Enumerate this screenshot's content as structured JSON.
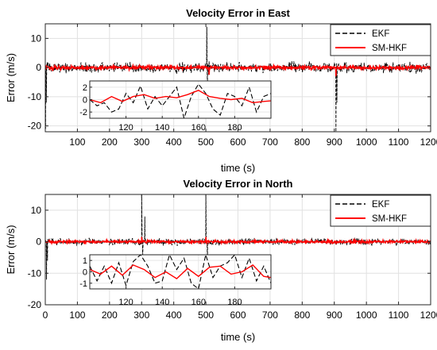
{
  "chart_data": [
    {
      "type": "line",
      "title": "Velocity Error in East",
      "xlabel": "time (s)",
      "ylabel": "Error (m/s)",
      "xlim": [
        0,
        1200
      ],
      "ylim": [
        -22,
        15
      ],
      "xticks": [
        "100",
        "200",
        "300",
        "400",
        "500",
        "600",
        "700",
        "800",
        "900",
        "1000",
        "1100",
        "1200"
      ],
      "yticks": [
        "10",
        "0",
        "-10",
        "-20"
      ],
      "grid": true,
      "legend_position": "top-right",
      "series": [
        {
          "name": "EKF",
          "color": "#000000",
          "line_style": "dashed",
          "noise_amplitude": 2.5,
          "spikes": [
            [
              1,
              -21
            ],
            [
              3,
              -12
            ],
            [
              503,
              14
            ],
            [
              505,
              -6
            ],
            [
              905,
              -22
            ],
            [
              908,
              -12
            ]
          ]
        },
        {
          "name": "SM-HKF",
          "color": "#ff0000",
          "line_style": "solid",
          "noise_amplitude": 0.9,
          "spikes": [
            [
              510,
              -2.5
            ],
            [
              905,
              -3
            ]
          ]
        }
      ],
      "inset": {
        "xlim": [
          100,
          200
        ],
        "ylim": [
          -3,
          3
        ],
        "xticks": [
          "120",
          "140",
          "160",
          "180"
        ],
        "yticks": [
          "2",
          "0",
          "-2"
        ],
        "series": [
          {
            "name": "EKF",
            "x": [
              100,
              104,
              108,
              112,
              116,
              120,
              124,
              128,
              132,
              136,
              140,
              144,
              148,
              152,
              156,
              160,
              164,
              168,
              172,
              176,
              180,
              184,
              188,
              192,
              196,
              200
            ],
            "y": [
              0,
              -1,
              -0.5,
              -2,
              -1.5,
              1,
              -0.5,
              2.2,
              -1.5,
              0.5,
              -1,
              0.5,
              2,
              -3,
              0.5,
              2.5,
              1,
              -1.5,
              -2.5,
              1,
              0.5,
              -1,
              2,
              -2,
              0.5,
              1
            ]
          },
          {
            "name": "SM-HKF",
            "x": [
              100,
              106,
              112,
              118,
              124,
              130,
              136,
              142,
              148,
              154,
              160,
              166,
              172,
              178,
              184,
              190,
              196,
              200
            ],
            "y": [
              0,
              -0.5,
              0.5,
              -0.3,
              0.5,
              0.8,
              0.2,
              0.5,
              0.3,
              0.8,
              1.5,
              0.5,
              0.2,
              0,
              0.2,
              -0.5,
              -0.3,
              -0.2
            ]
          }
        ]
      }
    },
    {
      "type": "line",
      "title": "Velocity Error in North",
      "xlabel": "time (s)",
      "ylabel": "Error (m/s)",
      "xlim": [
        0,
        1200
      ],
      "ylim": [
        -20,
        15
      ],
      "xticks": [
        "0",
        "100",
        "200",
        "300",
        "400",
        "500",
        "600",
        "700",
        "800",
        "900",
        "1000",
        "1100",
        "1200"
      ],
      "yticks": [
        "10",
        "0",
        "-10",
        "-20"
      ],
      "grid": true,
      "legend_position": "top-right",
      "series": [
        {
          "name": "EKF",
          "color": "#000000",
          "line_style": "dashed",
          "noise_amplitude": 1.5,
          "spikes": [
            [
              4,
              -12
            ],
            [
              7,
              -6
            ],
            [
              300,
              15
            ],
            [
              303,
              -5
            ],
            [
              310,
              8
            ],
            [
              500,
              15
            ],
            [
              505,
              -6
            ]
          ]
        },
        {
          "name": "SM-HKF",
          "color": "#ff0000",
          "line_style": "solid",
          "noise_amplitude": 0.6,
          "spikes": [
            [
              300,
              1.5
            ],
            [
              500,
              1.5
            ]
          ]
        }
      ],
      "inset": {
        "xlim": [
          100,
          200
        ],
        "ylim": [
          -1.5,
          1.5
        ],
        "xticks": [
          "120",
          "140",
          "160",
          "180"
        ],
        "yticks": [
          "1",
          "0",
          "-1"
        ],
        "series": [
          {
            "name": "EKF",
            "x": [
              100,
              104,
              108,
              112,
              116,
              120,
              124,
              128,
              132,
              136,
              140,
              144,
              148,
              152,
              156,
              160,
              164,
              168,
              172,
              176,
              180,
              184,
              188,
              192,
              196,
              200
            ],
            "y": [
              0.5,
              -0.8,
              0.5,
              -1,
              0.8,
              -1.2,
              0.9,
              1.5,
              0.5,
              -1,
              -0.8,
              1.5,
              0.2,
              1.2,
              -1,
              -1.5,
              1.5,
              -0.5,
              0.5,
              0.8,
              1.5,
              -0.5,
              1.2,
              -0.8,
              0.5,
              -1
            ]
          },
          {
            "name": "SM-HKF",
            "x": [
              100,
              106,
              112,
              118,
              124,
              130,
              136,
              142,
              148,
              154,
              160,
              166,
              172,
              178,
              184,
              190,
              196,
              200
            ],
            "y": [
              0.2,
              -0.2,
              0.5,
              -0.3,
              0.6,
              0.2,
              -0.5,
              0,
              -0.6,
              0.3,
              -0.4,
              0.4,
              0.5,
              -0.2,
              0,
              0.6,
              -0.4,
              -0.5
            ]
          }
        ]
      }
    }
  ]
}
